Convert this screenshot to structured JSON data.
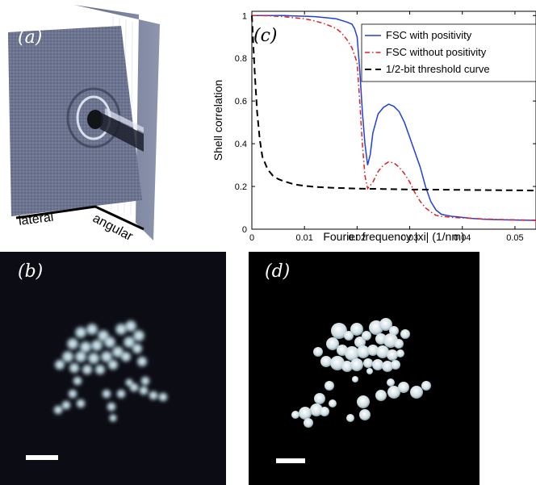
{
  "panels": {
    "a": {
      "label": "(a)",
      "axis_lateral": "lateral",
      "axis_angular": "angular"
    },
    "b": {
      "label": "(b)"
    },
    "c": {
      "label": "(c)"
    },
    "d": {
      "label": "(d)"
    }
  },
  "chart_data": {
    "type": "line",
    "xlabel": "Fourier frequency |xi| (1/nm)",
    "ylabel": "Shell correlation",
    "xlim": [
      0,
      0.054
    ],
    "ylim": [
      0,
      1.02
    ],
    "xticks": [
      "0",
      "0.01",
      "0.02",
      "0.03",
      "0.04",
      "0.05"
    ],
    "yticks": [
      "0",
      "0.2",
      "0.4",
      "0.6",
      "0.8",
      "1"
    ],
    "legend_position": "top-right",
    "series": [
      {
        "name": "FSC with positivity",
        "color": "#1f3fe0",
        "style": "solid",
        "x": [
          0,
          0.002,
          0.004,
          0.006,
          0.008,
          0.01,
          0.012,
          0.014,
          0.016,
          0.018,
          0.019,
          0.0195,
          0.02,
          0.0205,
          0.021,
          0.0215,
          0.022,
          0.0225,
          0.023,
          0.024,
          0.025,
          0.026,
          0.027,
          0.028,
          0.029,
          0.03,
          0.031,
          0.032,
          0.033,
          0.034,
          0.035,
          0.036,
          0.037,
          0.038,
          0.039,
          0.04,
          0.042,
          0.044,
          0.046,
          0.048,
          0.05,
          0.052,
          0.054
        ],
        "y": [
          1.0,
          1.0,
          1.0,
          1.0,
          0.998,
          0.997,
          0.995,
          0.99,
          0.985,
          0.97,
          0.96,
          0.94,
          0.9,
          0.75,
          0.55,
          0.4,
          0.3,
          0.35,
          0.45,
          0.54,
          0.57,
          0.585,
          0.575,
          0.55,
          0.5,
          0.43,
          0.36,
          0.29,
          0.2,
          0.13,
          0.09,
          0.07,
          0.065,
          0.06,
          0.058,
          0.055,
          0.05,
          0.047,
          0.045,
          0.044,
          0.043,
          0.042,
          0.041
        ]
      },
      {
        "name": "FSC without positivity",
        "color": "#e02020",
        "style": "dashdot",
        "x": [
          0,
          0.002,
          0.004,
          0.006,
          0.008,
          0.01,
          0.012,
          0.014,
          0.016,
          0.017,
          0.018,
          0.019,
          0.02,
          0.0205,
          0.021,
          0.0215,
          0.022,
          0.023,
          0.024,
          0.025,
          0.026,
          0.027,
          0.028,
          0.029,
          0.03,
          0.031,
          0.032,
          0.033,
          0.034,
          0.035,
          0.036,
          0.037,
          0.038,
          0.04,
          0.042,
          0.044,
          0.046,
          0.048,
          0.05,
          0.052,
          0.054
        ],
        "y": [
          1.0,
          1.0,
          0.998,
          0.995,
          0.99,
          0.985,
          0.975,
          0.96,
          0.94,
          0.92,
          0.89,
          0.85,
          0.78,
          0.6,
          0.4,
          0.25,
          0.19,
          0.22,
          0.27,
          0.3,
          0.315,
          0.31,
          0.29,
          0.26,
          0.22,
          0.17,
          0.13,
          0.1,
          0.08,
          0.065,
          0.06,
          0.058,
          0.055,
          0.053,
          0.05,
          0.048,
          0.046,
          0.045,
          0.044,
          0.043,
          0.042
        ]
      },
      {
        "name": "1/2-bit threshold curve",
        "color": "#000000",
        "style": "dashed",
        "x": [
          0,
          0.0005,
          0.001,
          0.0015,
          0.002,
          0.003,
          0.004,
          0.005,
          0.006,
          0.008,
          0.01,
          0.012,
          0.015,
          0.02,
          0.025,
          0.03,
          0.035,
          0.04,
          0.045,
          0.05,
          0.054
        ],
        "y": [
          1.0,
          0.75,
          0.55,
          0.42,
          0.34,
          0.28,
          0.25,
          0.235,
          0.225,
          0.21,
          0.203,
          0.198,
          0.194,
          0.19,
          0.188,
          0.186,
          0.185,
          0.184,
          0.183,
          0.182,
          0.181
        ]
      }
    ]
  },
  "colors": {
    "figure_background": "#ffffff",
    "panel_dark": "#000000"
  }
}
